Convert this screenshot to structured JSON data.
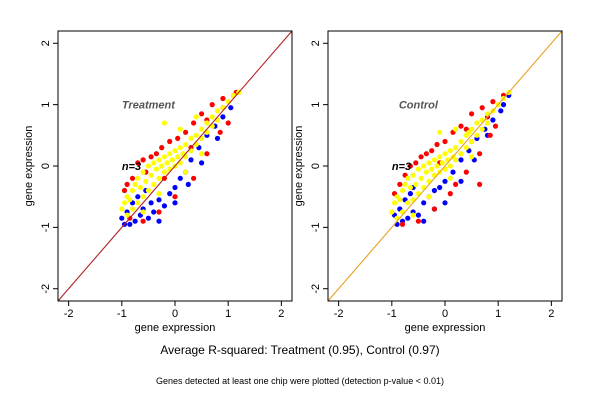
{
  "summary_text": "Average R-squared: Treatment (0.95), Control (0.97)",
  "footnote_text": "Genes detected at least one chip were plotted (detection p-value < 0.01)",
  "colors": {
    "background": "#ffffff",
    "blue_points": "#0000ff",
    "red_points": "#ff0000",
    "yellow_points": "#ffff00",
    "treatment_line": "#b22222",
    "control_line": "#e8a020"
  },
  "chart_data": [
    {
      "type": "scatter",
      "title": "Treatment",
      "annotation": "n=3",
      "xlabel": "gene expression",
      "ylabel": "gene expression",
      "xlim": [
        -2.2,
        2.2
      ],
      "ylim": [
        -2.2,
        2.2
      ],
      "xticks": [
        -2,
        -1,
        0,
        1,
        2
      ],
      "yticks": [
        -2,
        -1,
        0,
        1,
        2
      ],
      "grid": false,
      "reference_line": {
        "slope": 1,
        "intercept": 0
      },
      "series": [
        {
          "color": "blue",
          "points": [
            [
              -1.0,
              -0.85
            ],
            [
              -0.95,
              -0.95
            ],
            [
              -0.9,
              -0.75
            ],
            [
              -0.85,
              -0.95
            ],
            [
              -0.8,
              -0.6
            ],
            [
              -0.75,
              -0.9
            ],
            [
              -0.7,
              -0.5
            ],
            [
              -0.65,
              -0.8
            ],
            [
              -0.6,
              -0.7
            ],
            [
              -0.55,
              -0.4
            ],
            [
              -0.5,
              -0.85
            ],
            [
              -0.45,
              -0.6
            ],
            [
              -0.4,
              -0.75
            ],
            [
              -0.3,
              -0.55
            ],
            [
              -0.2,
              -0.65
            ],
            [
              -0.1,
              -0.45
            ],
            [
              0.0,
              -0.35
            ],
            [
              0.1,
              -0.2
            ],
            [
              0.2,
              -0.1
            ],
            [
              0.3,
              0.1
            ],
            [
              0.45,
              0.3
            ],
            [
              0.6,
              0.5
            ],
            [
              0.75,
              0.65
            ],
            [
              0.9,
              0.8
            ],
            [
              1.05,
              0.95
            ],
            [
              -0.3,
              -0.9
            ],
            [
              0.0,
              -0.6
            ],
            [
              0.25,
              -0.3
            ],
            [
              0.5,
              0.05
            ],
            [
              0.8,
              0.45
            ]
          ]
        },
        {
          "color": "red",
          "points": [
            [
              -0.95,
              -0.4
            ],
            [
              -0.9,
              -0.3
            ],
            [
              -0.8,
              -0.2
            ],
            [
              -0.7,
              0.05
            ],
            [
              -0.6,
              0.1
            ],
            [
              -0.55,
              -0.1
            ],
            [
              -0.45,
              0.15
            ],
            [
              -0.35,
              0.2
            ],
            [
              -0.25,
              0.3
            ],
            [
              -0.1,
              0.4
            ],
            [
              0.05,
              0.45
            ],
            [
              0.2,
              0.55
            ],
            [
              0.35,
              0.7
            ],
            [
              0.5,
              0.85
            ],
            [
              0.7,
              1.0
            ],
            [
              0.9,
              1.1
            ],
            [
              1.1,
              1.15
            ],
            [
              -0.85,
              -0.85
            ],
            [
              -0.6,
              -0.9
            ],
            [
              -0.3,
              -0.75
            ],
            [
              0.0,
              -0.5
            ],
            [
              0.35,
              -0.2
            ],
            [
              0.6,
              0.2
            ],
            [
              0.85,
              0.55
            ],
            [
              1.0,
              0.7
            ],
            [
              0.3,
              0.3
            ],
            [
              -0.2,
              -0.2
            ],
            [
              0.6,
              0.75
            ],
            [
              0.9,
              0.95
            ],
            [
              1.15,
              1.2
            ]
          ]
        },
        {
          "color": "yellow",
          "points": [
            [
              -1.0,
              -0.7
            ],
            [
              -0.95,
              -0.6
            ],
            [
              -0.9,
              -0.5
            ],
            [
              -0.9,
              -0.8
            ],
            [
              -0.85,
              -0.55
            ],
            [
              -0.8,
              -0.4
            ],
            [
              -0.8,
              -0.7
            ],
            [
              -0.75,
              -0.3
            ],
            [
              -0.7,
              -0.2
            ],
            [
              -0.7,
              -0.6
            ],
            [
              -0.65,
              -0.35
            ],
            [
              -0.6,
              -0.1
            ],
            [
              -0.6,
              -0.5
            ],
            [
              -0.55,
              -0.25
            ],
            [
              -0.5,
              0.0
            ],
            [
              -0.5,
              -0.4
            ],
            [
              -0.45,
              -0.15
            ],
            [
              -0.4,
              0.05
            ],
            [
              -0.4,
              -0.3
            ],
            [
              -0.35,
              -0.05
            ],
            [
              -0.3,
              0.1
            ],
            [
              -0.3,
              -0.2
            ],
            [
              -0.25,
              0.0
            ],
            [
              -0.2,
              0.15
            ],
            [
              -0.2,
              -0.1
            ],
            [
              -0.15,
              0.05
            ],
            [
              -0.1,
              0.2
            ],
            [
              -0.1,
              -0.05
            ],
            [
              -0.05,
              0.1
            ],
            [
              0.0,
              0.25
            ],
            [
              0.0,
              0.0
            ],
            [
              0.05,
              0.15
            ],
            [
              0.1,
              0.3
            ],
            [
              0.1,
              0.05
            ],
            [
              0.15,
              0.2
            ],
            [
              0.2,
              0.35
            ],
            [
              0.2,
              0.15
            ],
            [
              0.3,
              0.45
            ],
            [
              0.3,
              0.25
            ],
            [
              0.4,
              0.5
            ],
            [
              0.4,
              0.35
            ],
            [
              0.5,
              0.6
            ],
            [
              0.5,
              0.45
            ],
            [
              0.6,
              0.7
            ],
            [
              0.6,
              0.55
            ],
            [
              0.7,
              0.8
            ],
            [
              0.7,
              0.65
            ],
            [
              0.8,
              0.9
            ],
            [
              0.8,
              0.75
            ],
            [
              0.9,
              0.95
            ],
            [
              1.0,
              1.05
            ],
            [
              1.1,
              1.15
            ],
            [
              1.2,
              1.2
            ],
            [
              -0.2,
              0.7
            ],
            [
              0.1,
              0.6
            ],
            [
              0.4,
              0.8
            ],
            [
              0.2,
              -0.1
            ],
            [
              0.5,
              0.2
            ],
            [
              -0.6,
              -0.75
            ],
            [
              -0.3,
              -0.45
            ]
          ]
        }
      ]
    },
    {
      "type": "scatter",
      "title": "Control",
      "annotation": "n=3",
      "xlabel": "gene expression",
      "ylabel": "gene expression",
      "xlim": [
        -2.2,
        2.2
      ],
      "ylim": [
        -2.2,
        2.2
      ],
      "xticks": [
        -2,
        -1,
        0,
        1,
        2
      ],
      "yticks": [
        -2,
        -1,
        0,
        1,
        2
      ],
      "grid": false,
      "reference_line": {
        "slope": 1,
        "intercept": 0
      },
      "series": [
        {
          "color": "blue",
          "points": [
            [
              -0.95,
              -0.8
            ],
            [
              -0.9,
              -0.95
            ],
            [
              -0.85,
              -0.7
            ],
            [
              -0.8,
              -0.9
            ],
            [
              -0.75,
              -0.55
            ],
            [
              -0.7,
              -0.85
            ],
            [
              -0.65,
              -0.45
            ],
            [
              -0.6,
              -0.75
            ],
            [
              -0.5,
              -0.8
            ],
            [
              -0.4,
              -0.6
            ],
            [
              -0.3,
              -0.5
            ],
            [
              -0.2,
              -0.4
            ],
            [
              -0.1,
              -0.35
            ],
            [
              0.0,
              -0.25
            ],
            [
              0.15,
              -0.1
            ],
            [
              0.3,
              0.1
            ],
            [
              0.45,
              0.25
            ],
            [
              0.6,
              0.45
            ],
            [
              0.75,
              0.6
            ],
            [
              0.9,
              0.75
            ],
            [
              1.05,
              0.9
            ],
            [
              -0.4,
              -0.9
            ],
            [
              0.0,
              -0.6
            ],
            [
              0.3,
              -0.25
            ],
            [
              0.55,
              0.1
            ],
            [
              0.8,
              0.5
            ],
            [
              1.1,
              1.0
            ],
            [
              1.2,
              1.15
            ],
            [
              -0.6,
              -0.35
            ],
            [
              -0.2,
              -0.7
            ]
          ]
        },
        {
          "color": "red",
          "points": [
            [
              -0.95,
              -0.45
            ],
            [
              -0.85,
              -0.3
            ],
            [
              -0.75,
              -0.15
            ],
            [
              -0.65,
              0.0
            ],
            [
              -0.55,
              0.05
            ],
            [
              -0.45,
              0.15
            ],
            [
              -0.35,
              0.2
            ],
            [
              -0.25,
              0.25
            ],
            [
              -0.15,
              0.35
            ],
            [
              0.0,
              0.4
            ],
            [
              0.15,
              0.55
            ],
            [
              0.3,
              0.65
            ],
            [
              0.4,
              0.6
            ],
            [
              0.5,
              0.85
            ],
            [
              0.7,
              0.95
            ],
            [
              0.9,
              1.05
            ],
            [
              1.1,
              1.15
            ],
            [
              -0.8,
              -0.95
            ],
            [
              -0.5,
              -0.9
            ],
            [
              -0.2,
              -0.7
            ],
            [
              0.1,
              -0.45
            ],
            [
              0.4,
              -0.1
            ],
            [
              0.65,
              0.2
            ],
            [
              0.85,
              0.5
            ],
            [
              0.95,
              0.65
            ],
            [
              0.2,
              -0.3
            ],
            [
              0.65,
              -0.3
            ],
            [
              -0.1,
              0.05
            ],
            [
              0.5,
              0.4
            ],
            [
              0.8,
              0.8
            ]
          ]
        },
        {
          "color": "yellow",
          "points": [
            [
              -1.0,
              -0.75
            ],
            [
              -0.95,
              -0.6
            ],
            [
              -0.9,
              -0.5
            ],
            [
              -0.9,
              -0.85
            ],
            [
              -0.85,
              -0.55
            ],
            [
              -0.8,
              -0.4
            ],
            [
              -0.8,
              -0.75
            ],
            [
              -0.75,
              -0.3
            ],
            [
              -0.7,
              -0.2
            ],
            [
              -0.7,
              -0.6
            ],
            [
              -0.65,
              -0.35
            ],
            [
              -0.6,
              -0.15
            ],
            [
              -0.6,
              -0.55
            ],
            [
              -0.55,
              -0.3
            ],
            [
              -0.5,
              -0.05
            ],
            [
              -0.5,
              -0.45
            ],
            [
              -0.45,
              -0.2
            ],
            [
              -0.4,
              0.0
            ],
            [
              -0.4,
              -0.35
            ],
            [
              -0.35,
              -0.1
            ],
            [
              -0.3,
              0.05
            ],
            [
              -0.3,
              -0.25
            ],
            [
              -0.25,
              -0.05
            ],
            [
              -0.2,
              0.1
            ],
            [
              -0.2,
              -0.15
            ],
            [
              -0.15,
              0.0
            ],
            [
              -0.1,
              0.15
            ],
            [
              -0.1,
              -0.1
            ],
            [
              -0.05,
              0.05
            ],
            [
              0.0,
              0.2
            ],
            [
              0.0,
              -0.05
            ],
            [
              0.05,
              0.1
            ],
            [
              0.1,
              0.25
            ],
            [
              0.1,
              0.0
            ],
            [
              0.15,
              0.15
            ],
            [
              0.2,
              0.3
            ],
            [
              0.2,
              0.1
            ],
            [
              0.3,
              0.4
            ],
            [
              0.3,
              0.2
            ],
            [
              0.4,
              0.5
            ],
            [
              0.4,
              0.3
            ],
            [
              0.5,
              0.6
            ],
            [
              0.5,
              0.4
            ],
            [
              0.6,
              0.7
            ],
            [
              0.6,
              0.5
            ],
            [
              0.7,
              0.75
            ],
            [
              0.7,
              0.6
            ],
            [
              0.8,
              0.85
            ],
            [
              0.8,
              0.7
            ],
            [
              0.9,
              0.9
            ],
            [
              1.0,
              1.0
            ],
            [
              1.1,
              1.1
            ],
            [
              1.2,
              1.2
            ],
            [
              -0.1,
              0.55
            ],
            [
              0.2,
              0.6
            ],
            [
              0.45,
              0.55
            ],
            [
              0.1,
              -0.2
            ],
            [
              0.5,
              0.15
            ],
            [
              -0.6,
              -0.8
            ],
            [
              -0.3,
              -0.5
            ]
          ]
        }
      ]
    }
  ]
}
